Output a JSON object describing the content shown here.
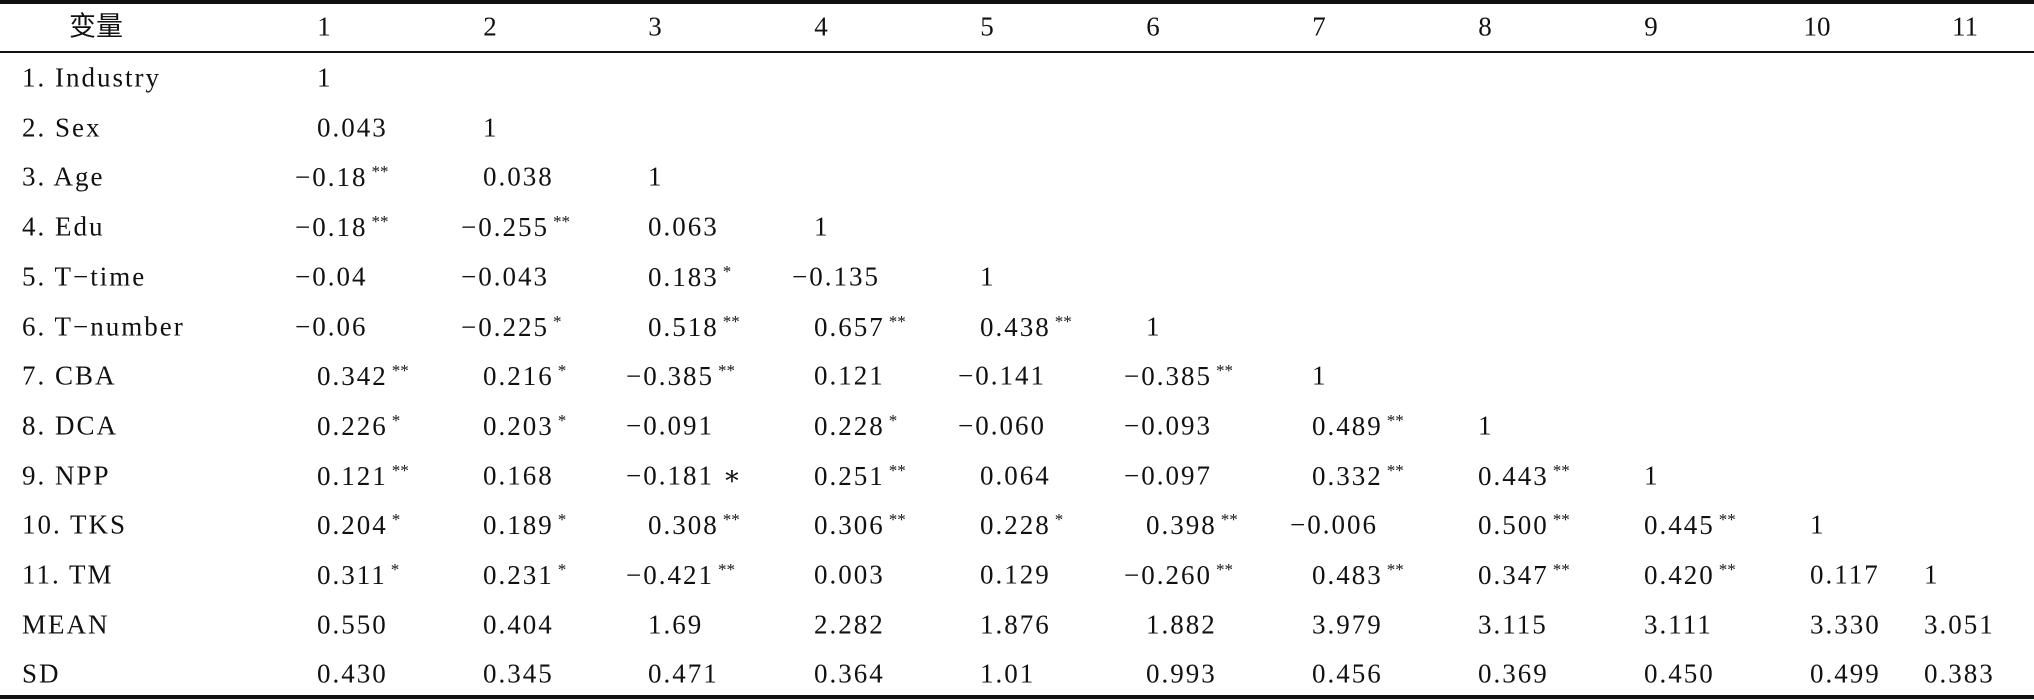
{
  "table": {
    "header": [
      "变量",
      "1",
      "2",
      "3",
      "4",
      "5",
      "6",
      "7",
      "8",
      "9",
      "10",
      "11"
    ],
    "rows": [
      {
        "label": "1. Industry",
        "cells": [
          "1"
        ]
      },
      {
        "label": "2. Sex",
        "cells": [
          "0.043",
          "1"
        ]
      },
      {
        "label": "3. Age",
        "cells": [
          {
            "v": "−0.18",
            "s": "**"
          },
          "0.038",
          "1"
        ]
      },
      {
        "label": "4. Edu",
        "cells": [
          {
            "v": "−0.18",
            "s": "**"
          },
          {
            "v": "−0.255",
            "s": "**"
          },
          "0.063",
          "1"
        ]
      },
      {
        "label": "5. T−time",
        "cells": [
          "−0.04",
          "−0.043",
          {
            "v": "0.183",
            "s": "*"
          },
          "−0.135",
          "1"
        ]
      },
      {
        "label": "6. T−number",
        "cells": [
          "−0.06",
          {
            "v": "−0.225",
            "s": "*"
          },
          {
            "v": "0.518",
            "s": "**"
          },
          {
            "v": "0.657",
            "s": "**"
          },
          {
            "v": "0.438",
            "s": "**"
          },
          "1"
        ]
      },
      {
        "label": "7. CBA",
        "cells": [
          {
            "v": "0.342",
            "s": "**"
          },
          {
            "v": "0.216",
            "s": "*"
          },
          {
            "v": "−0.385",
            "s": "**"
          },
          "0.121",
          "−0.141",
          {
            "v": "−0.385",
            "s": "**"
          },
          "1"
        ]
      },
      {
        "label": "8. DCA",
        "cells": [
          {
            "v": "0.226",
            "s": "*"
          },
          {
            "v": "0.203",
            "s": "*"
          },
          "−0.091",
          {
            "v": "0.228",
            "s": "*"
          },
          "−0.060",
          "−0.093",
          {
            "v": "0.489",
            "s": "**"
          },
          "1"
        ]
      },
      {
        "label": "9. NPP",
        "cells": [
          {
            "v": "0.121",
            "s": "**"
          },
          "0.168",
          "−0.181 ∗",
          {
            "v": "0.251",
            "s": "**"
          },
          "0.064",
          "−0.097",
          {
            "v": "0.332",
            "s": "**"
          },
          {
            "v": "0.443",
            "s": "**"
          },
          "1"
        ]
      },
      {
        "label": "10. TKS",
        "cells": [
          {
            "v": "0.204",
            "s": "*"
          },
          {
            "v": "0.189",
            "s": "*"
          },
          {
            "v": "0.308",
            "s": "**"
          },
          {
            "v": "0.306",
            "s": "**"
          },
          {
            "v": "0.228",
            "s": "*"
          },
          {
            "v": "0.398",
            "s": "**"
          },
          "−0.006",
          {
            "v": "0.500",
            "s": "**"
          },
          {
            "v": "0.445",
            "s": "**"
          },
          "1"
        ]
      },
      {
        "label": "11. TM",
        "cells": [
          {
            "v": "0.311",
            "s": "*"
          },
          {
            "v": "0.231",
            "s": "*"
          },
          {
            "v": "−0.421",
            "s": "**"
          },
          "0.003",
          "0.129",
          {
            "v": "−0.260",
            "s": "**"
          },
          {
            "v": "0.483",
            "s": "**"
          },
          {
            "v": "0.347",
            "s": "**"
          },
          {
            "v": "0.420",
            "s": "**"
          },
          "0.117",
          "1"
        ]
      },
      {
        "label": "MEAN",
        "cells": [
          "0.550",
          "0.404",
          "1.69",
          "2.282",
          "1.876",
          "1.882",
          "3.979",
          "3.115",
          "3.111",
          "3.330",
          "3.051"
        ]
      },
      {
        "label": "SD",
        "cells": [
          "0.430",
          "0.345",
          "0.471",
          "0.364",
          "1.01",
          "0.993",
          "0.456",
          "0.369",
          "0.450",
          "0.499",
          "0.383"
        ]
      }
    ]
  }
}
